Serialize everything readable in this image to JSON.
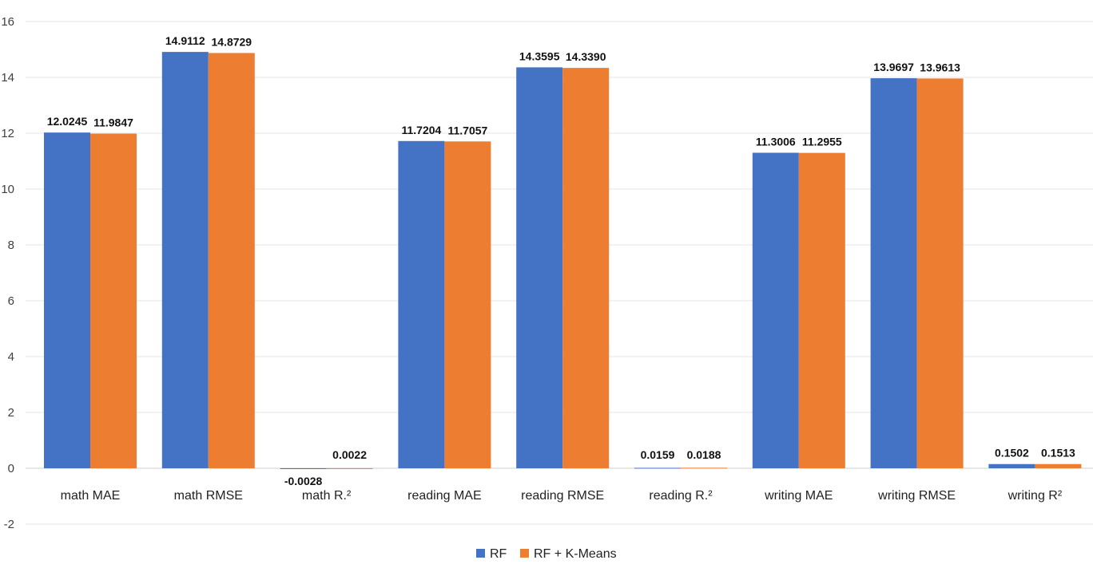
{
  "chart_data": {
    "type": "bar",
    "title": "",
    "xlabel": "",
    "ylabel": "",
    "ylim": [
      -2,
      16
    ],
    "yticks": [
      -2,
      0,
      2,
      4,
      6,
      8,
      10,
      12,
      14,
      16
    ],
    "grid": true,
    "legend_position": "bottom",
    "categories": [
      "math MAE",
      "math RMSE",
      "math R.²",
      "reading MAE",
      "reading RMSE",
      "reading R.²",
      "writing MAE",
      "writing RMSE",
      "writing R²"
    ],
    "series": [
      {
        "name": "RF",
        "color": "#4472C4",
        "values": [
          12.0245,
          14.9112,
          -0.0028,
          11.7204,
          14.3595,
          0.0159,
          11.3006,
          13.9697,
          0.1502
        ],
        "labels": [
          "12.0245",
          "14.9112",
          "-0.0028",
          "11.7204",
          "14.3595",
          "0.0159",
          "11.3006",
          "13.9697",
          "0.1502"
        ]
      },
      {
        "name": "RF + K-Means",
        "color": "#ED7D31",
        "values": [
          11.9847,
          14.8729,
          0.0022,
          11.7057,
          14.339,
          0.0188,
          11.2955,
          13.9613,
          0.1513
        ],
        "labels": [
          "11.9847",
          "14.8729",
          "0.0022",
          "11.7057",
          "14.3390",
          "0.0188",
          "11.2955",
          "13.9613",
          "0.1513"
        ]
      }
    ]
  }
}
